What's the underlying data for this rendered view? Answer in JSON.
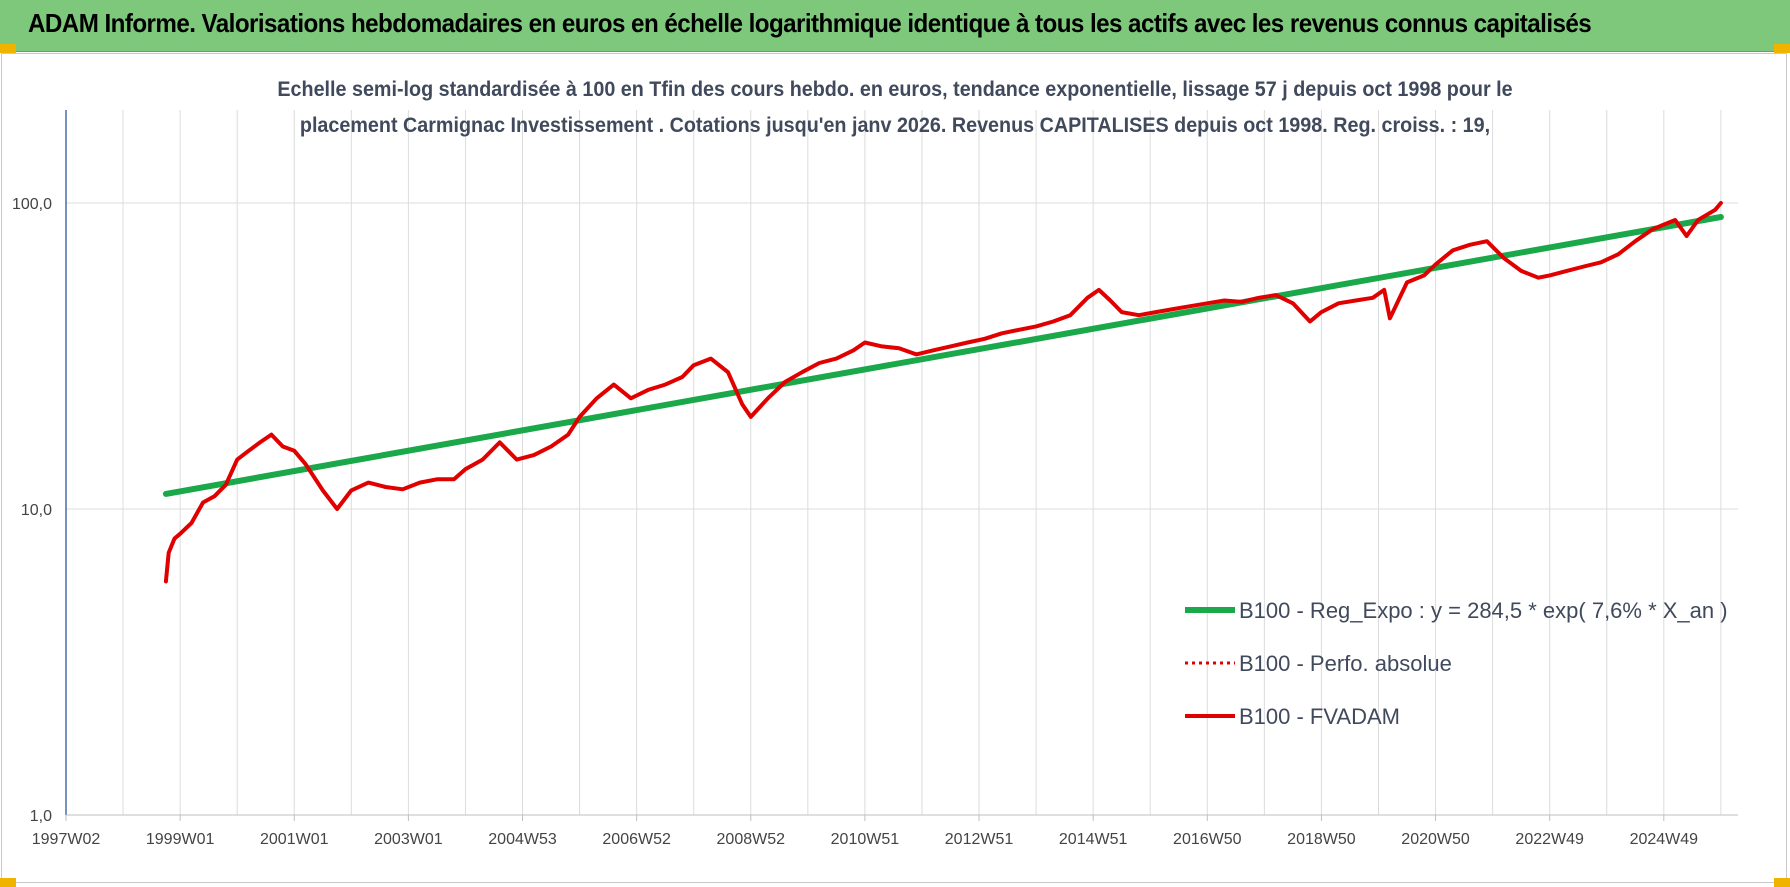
{
  "banner": {
    "title": "ADAM Informe. Valorisations hebdomadaires en euros en échelle logarithmique identique à tous les actifs avec les revenus connus capitalisés"
  },
  "colors": {
    "banner": "#7ec87c",
    "fvadam": "#e00000",
    "regression": "#1aa84a",
    "perfo": "#e00000",
    "grid": "#dcdcdc",
    "axis": "#4a6fa5"
  },
  "chart_data": {
    "type": "line",
    "title_line1": "Echelle semi-log standardisée à 100 en Tfin des cours hebdo. en euros, tendance exponentielle, lissage 57 j depuis oct 1998 pour le",
    "title_line2": "placement Carmignac Investissement . Cotations jusqu'en janv 2026. Revenus CAPITALISES depuis oct 1998. Reg. croiss. : 19,",
    "y_scale": "log",
    "ylim": [
      1,
      100
    ],
    "y_tick_labels": [
      "1,0",
      "10,0",
      "100,0"
    ],
    "y_tick_values": [
      1,
      10,
      100
    ],
    "xlim": [
      1997.0,
      2026.3
    ],
    "x_tick_labels": [
      "1997W02",
      "1999W01",
      "2001W01",
      "2003W01",
      "2004W53",
      "2006W52",
      "2008W52",
      "2010W51",
      "2012W51",
      "2014W51",
      "2016W50",
      "2018W50",
      "2020W50",
      "2022W49",
      "2024W49"
    ],
    "x_tick_values": [
      1997.0,
      1999.0,
      2001.0,
      2003.0,
      2005.0,
      2007.0,
      2009.0,
      2011.0,
      2013.0,
      2015.0,
      2017.0,
      2019.0,
      2021.0,
      2023.0,
      2025.0
    ],
    "grid": true,
    "legend_position": "bottom-right",
    "series": [
      {
        "name": "B100 - Reg_Expo : y = 284,5 * exp( 7,6% *  X_an )",
        "style": "solid-green",
        "x": [
          1998.75,
          2026.0
        ],
        "y": [
          11.2,
          90.0
        ]
      },
      {
        "name": "B100 - Perfo. absolue",
        "style": "dotted-red",
        "x": [],
        "y": []
      },
      {
        "name": "B100 - FVADAM",
        "style": "solid-red",
        "x": [
          1998.75,
          1998.8,
          1998.9,
          1999.0,
          1999.2,
          1999.4,
          1999.6,
          1999.8,
          2000.0,
          2000.2,
          2000.4,
          2000.6,
          2000.8,
          2001.0,
          2001.2,
          2001.5,
          2001.75,
          2002.0,
          2002.3,
          2002.6,
          2002.9,
          2003.2,
          2003.5,
          2003.8,
          2004.0,
          2004.3,
          2004.6,
          2004.9,
          2005.2,
          2005.5,
          2005.8,
          2006.0,
          2006.3,
          2006.6,
          2006.9,
          2007.2,
          2007.5,
          2007.8,
          2008.0,
          2008.3,
          2008.6,
          2008.85,
          2009.0,
          2009.3,
          2009.6,
          2009.9,
          2010.2,
          2010.5,
          2010.8,
          2011.0,
          2011.3,
          2011.6,
          2011.9,
          2012.2,
          2012.5,
          2012.8,
          2013.1,
          2013.4,
          2013.7,
          2014.0,
          2014.3,
          2014.6,
          2014.9,
          2015.1,
          2015.3,
          2015.5,
          2015.8,
          2016.1,
          2016.4,
          2016.7,
          2017.0,
          2017.3,
          2017.6,
          2017.9,
          2018.2,
          2018.5,
          2018.8,
          2019.0,
          2019.3,
          2019.6,
          2019.9,
          2020.1,
          2020.2,
          2020.5,
          2020.8,
          2021.0,
          2021.3,
          2021.6,
          2021.9,
          2022.2,
          2022.5,
          2022.8,
          2023.0,
          2023.3,
          2023.6,
          2023.9,
          2024.2,
          2024.5,
          2024.8,
          2025.0,
          2025.2,
          2025.4,
          2025.6,
          2025.9,
          2026.0
        ],
        "y": [
          5.8,
          7.2,
          8.0,
          8.3,
          9.0,
          10.5,
          11.0,
          12.0,
          14.5,
          15.5,
          16.5,
          17.5,
          16.0,
          15.5,
          14.0,
          11.5,
          10.0,
          11.5,
          12.2,
          11.8,
          11.6,
          12.2,
          12.5,
          12.5,
          13.5,
          14.5,
          16.5,
          14.5,
          15.0,
          16.0,
          17.5,
          20.0,
          23.0,
          25.5,
          23.0,
          24.5,
          25.5,
          27.0,
          29.5,
          31.0,
          28.0,
          22.0,
          20.0,
          23.0,
          26.0,
          28.0,
          30.0,
          31.0,
          33.0,
          35.0,
          34.0,
          33.5,
          32.0,
          33.0,
          34.0,
          35.0,
          36.0,
          37.5,
          38.5,
          39.5,
          41.0,
          43.0,
          49.0,
          52.0,
          48.0,
          44.0,
          43.0,
          44.0,
          45.0,
          46.0,
          47.0,
          48.0,
          47.5,
          49.0,
          50.0,
          47.0,
          41.0,
          44.0,
          47.0,
          48.0,
          49.0,
          52.0,
          42.0,
          55.0,
          58.0,
          63.0,
          70.0,
          73.0,
          75.0,
          66.0,
          60.0,
          57.0,
          58.0,
          60.0,
          62.0,
          64.0,
          68.0,
          75.0,
          82.0,
          85.0,
          88.0,
          78.0,
          88.0,
          95.0,
          100.0
        ]
      }
    ]
  }
}
